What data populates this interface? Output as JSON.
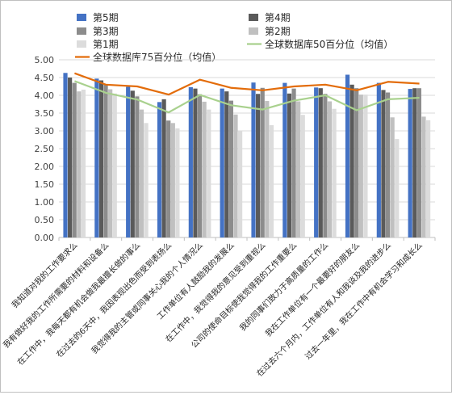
{
  "chart_data": {
    "type": "bar",
    "title": "",
    "xlabel": "",
    "ylabel": "",
    "ylim": [
      0,
      5
    ],
    "yticks": [
      "0.00",
      "0.50",
      "1.00",
      "1.50",
      "2.00",
      "2.50",
      "3.00",
      "3.50",
      "4.00",
      "4.50",
      "5.00"
    ],
    "grid": true,
    "legend_position": "top",
    "categories": [
      "我知道对我的工作要求么",
      "我有做好我的工作所需要的材料和设备么",
      "在工作中，我每天都有机会做我最擅长做的事么",
      "在过去的6天中，我因表现出色而受到表扬么",
      "我觉得我的主管或同事关心我的个人情况么",
      "工作单位有人鼓励我的发展么",
      "在工作中，我觉得我的意见受到重视么",
      "公司的使命目标使我觉得我的工作重要么",
      "我的同事们致力于高质量的工作么",
      "我在工作单位有一个最要好的朋友么",
      "在过去六个月内，工作单位有人和我谈及我的进步么",
      "过去一年里，我在工作中有机会学习和成长么"
    ],
    "bar_series": [
      {
        "name": "第5期",
        "color": "#4472c4",
        "values": [
          4.63,
          4.47,
          4.24,
          3.81,
          4.23,
          4.19,
          4.36,
          4.35,
          4.22,
          4.58,
          4.35,
          4.18
        ]
      },
      {
        "name": "第4期",
        "color": "#5a5a5a",
        "values": [
          4.5,
          4.42,
          4.13,
          3.89,
          4.19,
          4.11,
          4.04,
          4.05,
          4.2,
          4.3,
          4.15,
          4.2
        ]
      },
      {
        "name": "第3期",
        "color": "#8c8c8c",
        "values": [
          4.35,
          4.31,
          3.97,
          3.29,
          4.03,
          3.85,
          4.21,
          4.19,
          4.04,
          4.2,
          4.08,
          4.2
        ]
      },
      {
        "name": "第2期",
        "color": "#c0c0c0",
        "values": [
          4.11,
          4.17,
          3.6,
          3.22,
          3.82,
          3.46,
          3.84,
          3.83,
          3.83,
          4.02,
          3.38,
          3.4
        ]
      },
      {
        "name": "第1期",
        "color": "#dcdcdc",
        "values": [
          4.16,
          4.05,
          3.22,
          3.07,
          3.6,
          3.0,
          3.16,
          3.45,
          3.62,
          4.02,
          2.77,
          3.3
        ]
      }
    ],
    "line_series": [
      {
        "name": "全球数据库75百分位（均值）",
        "color": "#e36c0a",
        "values": [
          4.62,
          4.3,
          4.25,
          4.02,
          4.44,
          4.21,
          4.14,
          4.25,
          4.3,
          4.14,
          4.38,
          4.33
        ]
      },
      {
        "name": "全球数据库50百分位（均值）",
        "color": "#a9d18e",
        "values": [
          4.4,
          4.07,
          3.88,
          3.52,
          4.01,
          3.72,
          3.6,
          3.85,
          4.0,
          3.58,
          3.89,
          3.93
        ]
      }
    ]
  }
}
